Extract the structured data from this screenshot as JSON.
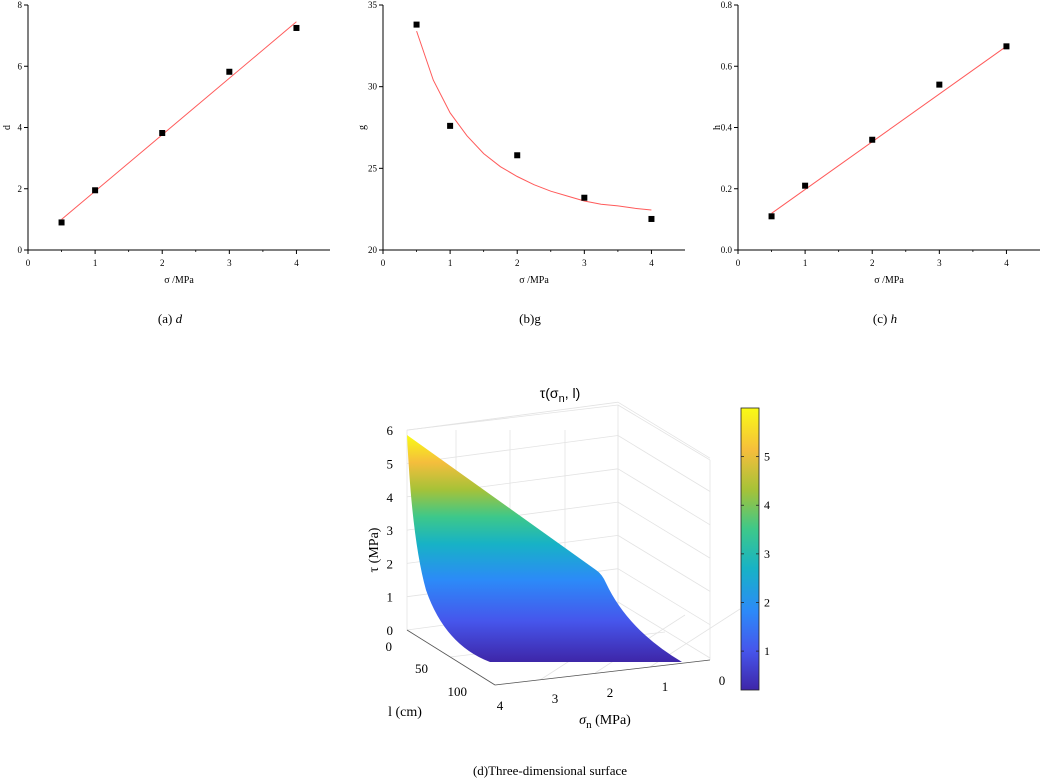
{
  "chart_data": [
    {
      "type": "scatter",
      "subplot": "a",
      "caption_prefix": "(a) ",
      "caption_var": "d",
      "xlabel": "σ /MPa",
      "ylabel": "d",
      "xlim": [
        0,
        4.5
      ],
      "ylim": [
        0,
        8
      ],
      "xticks": [
        0,
        1,
        2,
        3,
        4
      ],
      "yticks": [
        0,
        2,
        4,
        6,
        8
      ],
      "ytick_labels": [
        "0",
        "2",
        "4",
        "6",
        "8"
      ],
      "x": [
        0.5,
        1,
        2,
        3,
        4
      ],
      "y": [
        0.9,
        1.95,
        3.82,
        5.82,
        7.25
      ],
      "fit": {
        "kind": "linear",
        "x": [
          0.5,
          4
        ],
        "y": [
          1.0,
          7.45
        ]
      },
      "marker_color": "#000000",
      "fit_color": "#ff5a5a"
    },
    {
      "type": "scatter",
      "subplot": "b",
      "caption_prefix": "(b)g",
      "caption_var": "",
      "xlabel": "σ /MPa",
      "ylabel": "g",
      "xlim": [
        0,
        4.5
      ],
      "ylim": [
        20,
        35
      ],
      "xticks": [
        0,
        1,
        2,
        3,
        4
      ],
      "yticks": [
        20,
        25,
        30,
        35
      ],
      "ytick_labels": [
        "20",
        "25",
        "30",
        "35"
      ],
      "x": [
        0.5,
        1,
        2,
        3,
        4
      ],
      "y": [
        33.8,
        27.6,
        25.8,
        23.2,
        21.9
      ],
      "fit": {
        "kind": "curve",
        "x": [
          0.5,
          0.75,
          1,
          1.25,
          1.5,
          1.75,
          2,
          2.25,
          2.5,
          2.75,
          3,
          3.25,
          3.5,
          3.75,
          4
        ],
        "y": [
          33.4,
          30.4,
          28.4,
          27.0,
          25.9,
          25.1,
          24.5,
          24.0,
          23.6,
          23.3,
          23.0,
          22.8,
          22.7,
          22.55,
          22.45
        ]
      },
      "marker_color": "#000000",
      "fit_color": "#ff5a5a"
    },
    {
      "type": "scatter",
      "subplot": "c",
      "caption_prefix": "(c) ",
      "caption_var": "h",
      "xlabel": "σ /MPa",
      "ylabel": "h",
      "xlim": [
        0,
        4.5
      ],
      "ylim": [
        0,
        0.8
      ],
      "xticks": [
        0,
        1,
        2,
        3,
        4
      ],
      "yticks": [
        0,
        0.2,
        0.4,
        0.6,
        0.8
      ],
      "ytick_labels": [
        "0.0",
        "0.2",
        "0.4",
        "0.6",
        "0.8"
      ],
      "x": [
        0.5,
        1,
        2,
        3,
        4
      ],
      "y": [
        0.11,
        0.21,
        0.36,
        0.54,
        0.665
      ],
      "fit": {
        "kind": "linear",
        "x": [
          0.5,
          4
        ],
        "y": [
          0.12,
          0.665
        ]
      },
      "marker_color": "#000000",
      "fit_color": "#ff5a5a"
    },
    {
      "type": "surface",
      "subplot": "d",
      "title_main": "τ(σ",
      "title_sub": "n",
      "title_tail": ", l)",
      "zlabel": "τ (MPa)",
      "ylabel": "l (cm)",
      "xlabel_main": "σ",
      "xlabel_sub": "n",
      "xlabel_tail": " (MPa)",
      "zticks": [
        "0",
        "1",
        "2",
        "3",
        "4",
        "5",
        "6"
      ],
      "lticks": [
        "0",
        "50",
        "100"
      ],
      "sigma_ticks": [
        "4",
        "3",
        "2",
        "1",
        "0"
      ],
      "colorbar_ticks": [
        "1",
        "2",
        "3",
        "4",
        "5"
      ],
      "colorbar_range": [
        0.2,
        6
      ],
      "colormap": [
        "#3e26a8",
        "#4656ec",
        "#2c8af8",
        "#17b2c6",
        "#3dc88a",
        "#a6c238",
        "#f5be3c",
        "#f9fb15"
      ],
      "caption": "(d)Three-dimensional surface"
    }
  ]
}
